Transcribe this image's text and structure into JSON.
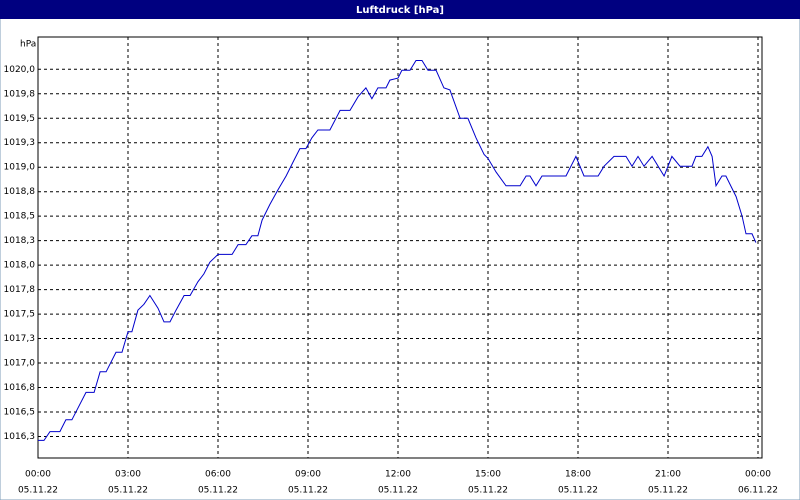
{
  "chart_data": {
    "type": "line",
    "title": "Luftdruck [hPa]",
    "y_unit": "hPa",
    "color": "#0000cc",
    "grid": true,
    "xlim": [
      0,
      24
    ],
    "xticks": [
      {
        "value": 0,
        "label": "00:00"
      },
      {
        "value": 3,
        "label": "03:00"
      },
      {
        "value": 6,
        "label": "06:00"
      },
      {
        "value": 9,
        "label": "09:00"
      },
      {
        "value": 12,
        "label": "12:00"
      },
      {
        "value": 15,
        "label": "15:00"
      },
      {
        "value": 18,
        "label": "18:00"
      },
      {
        "value": 21,
        "label": "21:00"
      },
      {
        "value": 24,
        "label": "00:00"
      }
    ],
    "xtick_dates": [
      "05.11.22",
      "05.11.22",
      "05.11.22",
      "05.11.22",
      "05.11.22",
      "05.11.22",
      "05.11.22",
      "05.11.22",
      "06.11.22"
    ],
    "ylim": [
      1016.03,
      1020.33
    ],
    "yticks": [
      {
        "value": 1016.25,
        "label": "1016,3"
      },
      {
        "value": 1016.5,
        "label": "1016,5"
      },
      {
        "value": 1016.75,
        "label": "1016,8"
      },
      {
        "value": 1017.0,
        "label": "1017,0"
      },
      {
        "value": 1017.25,
        "label": "1017,3"
      },
      {
        "value": 1017.5,
        "label": "1017,5"
      },
      {
        "value": 1017.75,
        "label": "1017,8"
      },
      {
        "value": 1018.0,
        "label": "1018,0"
      },
      {
        "value": 1018.25,
        "label": "1018,3"
      },
      {
        "value": 1018.5,
        "label": "1018,5"
      },
      {
        "value": 1018.75,
        "label": "1018,8"
      },
      {
        "value": 1019.0,
        "label": "1019,0"
      },
      {
        "value": 1019.25,
        "label": "1019,3"
      },
      {
        "value": 1019.5,
        "label": "1019,5"
      },
      {
        "value": 1019.75,
        "label": "1019,8"
      },
      {
        "value": 1020.0,
        "label": "1020,0"
      }
    ],
    "x": [
      0,
      0.2,
      0.4,
      0.73,
      0.93,
      1.13,
      1.6,
      1.87,
      2.07,
      2.27,
      2.6,
      2.8,
      3,
      3.13,
      3.33,
      3.53,
      3.73,
      4,
      4.2,
      4.4,
      4.6,
      4.87,
      5.07,
      5.33,
      5.53,
      5.73,
      6,
      6.47,
      6.67,
      6.93,
      7.13,
      7.33,
      7.47,
      7.73,
      8,
      8.27,
      8.53,
      8.73,
      8.93,
      9.13,
      9.33,
      9.73,
      10.07,
      10.4,
      10.67,
      10.93,
      11.13,
      11.33,
      11.6,
      11.73,
      12,
      12.13,
      12.4,
      12.6,
      12.8,
      13,
      13.27,
      13.53,
      13.73,
      14.07,
      14.33,
      14.6,
      14.87,
      15,
      15.27,
      15.6,
      16.07,
      16.27,
      16.4,
      16.6,
      16.8,
      17.6,
      17.93,
      18.2,
      18.67,
      18.87,
      19.2,
      19.6,
      19.8,
      20,
      20.2,
      20.47,
      20.87,
      21.13,
      21.4,
      21.8,
      21.93,
      22.13,
      22.33,
      22.47,
      22.6,
      22.8,
      22.93,
      23.27,
      23.47,
      23.6,
      23.8,
      23.93
    ],
    "values": [
      1016.21,
      1016.21,
      1016.3,
      1016.3,
      1016.42,
      1016.42,
      1016.7,
      1016.7,
      1016.91,
      1016.91,
      1017.11,
      1017.11,
      1017.32,
      1017.32,
      1017.54,
      1017.6,
      1017.69,
      1017.56,
      1017.42,
      1017.42,
      1017.54,
      1017.69,
      1017.69,
      1017.83,
      1017.91,
      1018.03,
      1018.11,
      1018.11,
      1018.21,
      1018.21,
      1018.3,
      1018.3,
      1018.46,
      1018.62,
      1018.77,
      1018.91,
      1019.07,
      1019.19,
      1019.19,
      1019.3,
      1019.38,
      1019.38,
      1019.58,
      1019.58,
      1019.72,
      1019.81,
      1019.7,
      1019.81,
      1019.81,
      1019.89,
      1019.91,
      1019.99,
      1019.99,
      1020.09,
      1020.09,
      1019.99,
      1019.99,
      1019.81,
      1019.79,
      1019.5,
      1019.5,
      1019.3,
      1019.13,
      1019.09,
      1018.95,
      1018.81,
      1018.81,
      1018.91,
      1018.91,
      1018.81,
      1018.91,
      1018.91,
      1019.11,
      1018.91,
      1018.91,
      1019.01,
      1019.11,
      1019.11,
      1019.01,
      1019.11,
      1019.01,
      1019.11,
      1018.91,
      1019.11,
      1019.01,
      1019.01,
      1019.11,
      1019.11,
      1019.21,
      1019.11,
      1018.81,
      1018.91,
      1018.91,
      1018.7,
      1018.5,
      1018.32,
      1018.32,
      1018.23
    ]
  }
}
